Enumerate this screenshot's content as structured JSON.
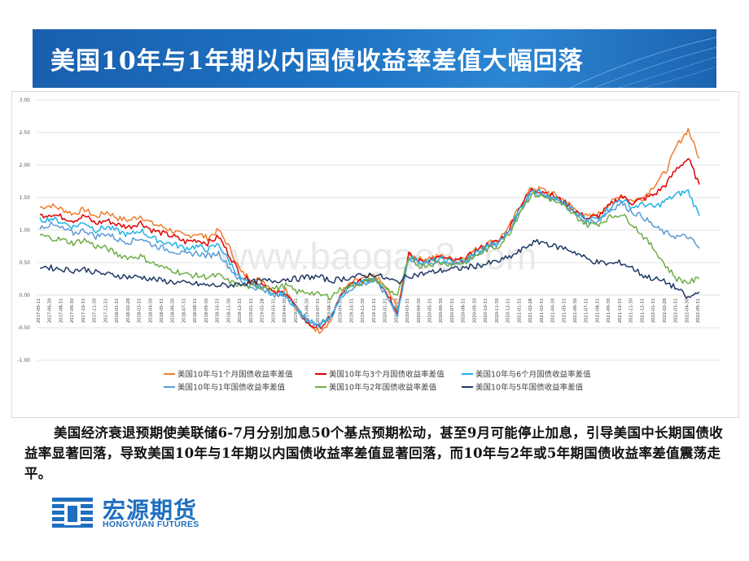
{
  "slide_title": "美国10年与1年期以内国债收益率差值大幅回落",
  "watermark": "www.baogao8.com",
  "paragraph": "美国经济衰退预期使美联储6-7月分别加息50个基点预期松动，甚至9月可能停止加息，引导美国中长期国债收益率显著回落，导致美国10年与1年期以内国债收益率差值显著回落，而10年与2年或5年期国债收益率差值震荡走平。",
  "logo": {
    "name_cn": "宏源期货",
    "name_en": "HONGYUAN FUTURES"
  },
  "chart_data": {
    "type": "line",
    "ylim": [
      -1.0,
      3.0
    ],
    "y_ticks": [
      "3.00",
      "2.50",
      "2.00",
      "1.50",
      "1.00",
      "0.50",
      "0.00",
      "-0.50",
      "-1.00"
    ],
    "grid": true,
    "legend_position": "bottom",
    "x_ticks": [
      "2017-05-11",
      "2017-06-30",
      "2017-08-31",
      "2017-09-30",
      "2017-10-31",
      "2017-11-30",
      "2017-12-31",
      "2018-01-31",
      "2018-02-28",
      "2018-03-31",
      "2018-04-30",
      "2018-05-31",
      "2018-06-30",
      "2018-07-31",
      "2018-08-31",
      "2018-09-30",
      "2018-10-31",
      "2018-11-30",
      "2018-12-31",
      "2019-01-31",
      "2019-02-28",
      "2019-03-31",
      "2019-04-30",
      "2019-05-31",
      "2019-06-30",
      "2019-07-31",
      "2019-08-31",
      "2019-09-30",
      "2019-10-31",
      "2019-11-30",
      "2019-12-31",
      "2020-01-31",
      "2020-02-29",
      "2020-03-31",
      "2020-04-30",
      "2020-05-31",
      "2020-06-30",
      "2020-07-31",
      "2020-08-31",
      "2020-09-30",
      "2020-10-31",
      "2020-11-30",
      "2020-12-31",
      "2021-01-31",
      "2021-02-28",
      "2021-03-31",
      "2021-04-30",
      "2021-05-31",
      "2021-06-30",
      "2021-07-31",
      "2021-08-31",
      "2021-09-30",
      "2021-10-31",
      "2021-11-30",
      "2021-12-31",
      "2022-01-31",
      "2022-02-28",
      "2022-03-31",
      "2022-04-30",
      "2022-05-31"
    ],
    "series": [
      {
        "name": "美国10年与1个月国债收益率差值",
        "color": "#ed7d31",
        "values": [
          1.35,
          1.38,
          1.32,
          1.25,
          1.32,
          1.2,
          1.28,
          1.18,
          1.15,
          1.22,
          1.1,
          1.05,
          0.98,
          0.9,
          0.95,
          0.88,
          1.0,
          0.72,
          0.35,
          0.25,
          0.22,
          0.05,
          0.1,
          -0.2,
          -0.45,
          -0.55,
          -0.4,
          0.05,
          0.2,
          0.25,
          0.3,
          0.1,
          -0.2,
          0.65,
          0.55,
          0.58,
          0.6,
          0.55,
          0.58,
          0.7,
          0.8,
          0.85,
          1.05,
          1.4,
          1.65,
          1.62,
          1.55,
          1.45,
          1.3,
          1.2,
          1.25,
          1.4,
          1.55,
          1.45,
          1.5,
          1.7,
          1.9,
          2.3,
          2.55,
          2.1
        ]
      },
      {
        "name": "美国10年与3个月国债收益率差值",
        "color": "#e00000",
        "values": [
          1.22,
          1.25,
          1.2,
          1.15,
          1.22,
          1.1,
          1.15,
          1.08,
          1.05,
          1.12,
          1.0,
          0.95,
          0.9,
          0.82,
          0.85,
          0.8,
          0.9,
          0.6,
          0.3,
          0.2,
          0.18,
          0.02,
          0.05,
          -0.22,
          -0.45,
          -0.5,
          -0.35,
          0.02,
          0.18,
          0.22,
          0.28,
          0.05,
          -0.25,
          0.62,
          0.52,
          0.55,
          0.58,
          0.52,
          0.55,
          0.68,
          0.78,
          0.82,
          1.02,
          1.38,
          1.62,
          1.6,
          1.52,
          1.42,
          1.28,
          1.18,
          1.22,
          1.38,
          1.52,
          1.42,
          1.48,
          1.55,
          1.7,
          1.95,
          2.1,
          1.7
        ]
      },
      {
        "name": "美国10年与6个月国债收益率差值",
        "color": "#22b2e6",
        "values": [
          1.15,
          1.18,
          1.12,
          1.05,
          1.12,
          1.0,
          1.05,
          0.98,
          0.92,
          1.0,
          0.88,
          0.82,
          0.78,
          0.72,
          0.75,
          0.7,
          0.78,
          0.5,
          0.25,
          0.15,
          0.12,
          0.0,
          0.02,
          -0.2,
          -0.42,
          -0.48,
          -0.35,
          0.0,
          0.15,
          0.2,
          0.25,
          0.02,
          -0.28,
          0.6,
          0.5,
          0.52,
          0.55,
          0.5,
          0.52,
          0.65,
          0.75,
          0.8,
          1.0,
          1.35,
          1.6,
          1.58,
          1.5,
          1.4,
          1.25,
          1.15,
          1.2,
          1.35,
          1.48,
          1.35,
          1.4,
          1.35,
          1.45,
          1.55,
          1.6,
          1.22
        ]
      },
      {
        "name": "美国10年与1年国债收益率差值",
        "color": "#5b9bd5",
        "values": [
          1.05,
          1.08,
          1.02,
          0.95,
          1.0,
          0.9,
          0.95,
          0.85,
          0.82,
          0.88,
          0.78,
          0.72,
          0.68,
          0.62,
          0.65,
          0.6,
          0.65,
          0.42,
          0.2,
          0.12,
          0.1,
          -0.02,
          0.0,
          -0.22,
          -0.4,
          -0.45,
          -0.32,
          0.0,
          0.12,
          0.18,
          0.22,
          0.0,
          -0.3,
          0.58,
          0.48,
          0.5,
          0.52,
          0.48,
          0.5,
          0.62,
          0.72,
          0.78,
          0.98,
          1.32,
          1.58,
          1.55,
          1.48,
          1.38,
          1.22,
          1.12,
          1.15,
          1.3,
          1.42,
          1.28,
          1.2,
          1.05,
          0.95,
          0.9,
          0.9,
          0.72
        ]
      },
      {
        "name": "美国10年与2年国债收益率差值",
        "color": "#70ad47",
        "values": [
          0.92,
          0.88,
          0.85,
          0.8,
          0.85,
          0.75,
          0.72,
          0.62,
          0.58,
          0.6,
          0.5,
          0.42,
          0.38,
          0.32,
          0.3,
          0.28,
          0.3,
          0.2,
          0.15,
          0.12,
          0.14,
          0.1,
          0.15,
          0.05,
          0.05,
          0.0,
          -0.02,
          0.1,
          0.15,
          0.2,
          0.25,
          0.1,
          0.0,
          0.55,
          0.45,
          0.48,
          0.5,
          0.48,
          0.5,
          0.6,
          0.7,
          0.75,
          0.95,
          1.3,
          1.55,
          1.52,
          1.45,
          1.35,
          1.2,
          1.08,
          1.1,
          1.2,
          1.25,
          1.1,
          0.9,
          0.7,
          0.45,
          0.25,
          0.2,
          0.25
        ]
      },
      {
        "name": "美国10年与5年国债收益率差值",
        "color": "#1f3864",
        "values": [
          0.45,
          0.42,
          0.4,
          0.38,
          0.4,
          0.35,
          0.32,
          0.3,
          0.28,
          0.28,
          0.25,
          0.22,
          0.2,
          0.18,
          0.17,
          0.15,
          0.15,
          0.15,
          0.18,
          0.2,
          0.22,
          0.22,
          0.25,
          0.25,
          0.28,
          0.28,
          0.22,
          0.25,
          0.28,
          0.3,
          0.32,
          0.25,
          0.2,
          0.3,
          0.32,
          0.35,
          0.38,
          0.4,
          0.42,
          0.45,
          0.48,
          0.52,
          0.58,
          0.68,
          0.8,
          0.82,
          0.75,
          0.72,
          0.65,
          0.55,
          0.5,
          0.48,
          0.5,
          0.42,
          0.3,
          0.25,
          0.2,
          0.1,
          -0.05,
          0.05
        ]
      }
    ]
  }
}
